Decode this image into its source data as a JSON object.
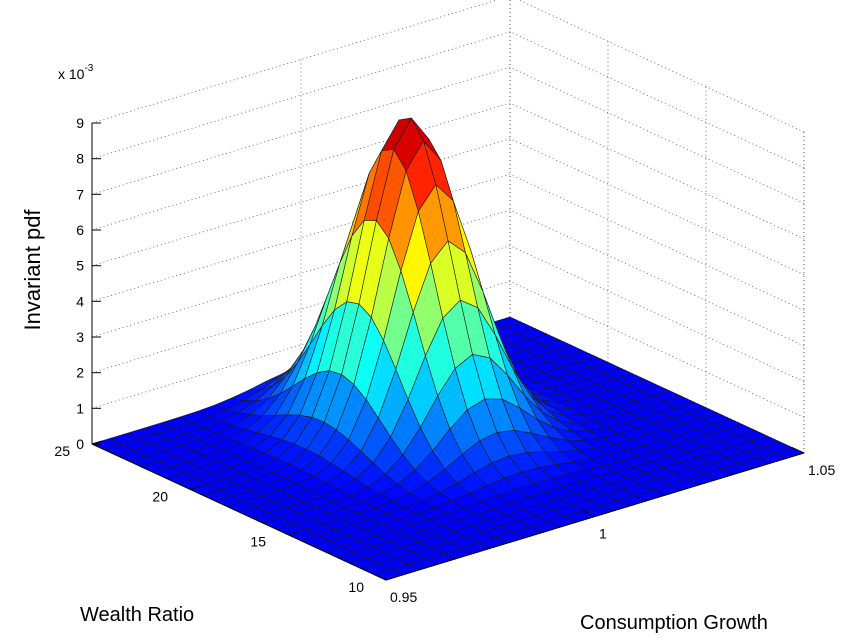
{
  "chart_data": {
    "type": "surface",
    "title": "",
    "zlabel": "Invariant pdf",
    "xlabel": "Consumption Growth",
    "ylabel": "Wealth Ratio",
    "z_multiplier_label": "x 10",
    "z_multiplier_exponent": "-3",
    "xlim": [
      0.95,
      1.05
    ],
    "ylim": [
      10,
      25
    ],
    "zlim": [
      0,
      9
    ],
    "x_ticks": [
      "0.95",
      "1",
      "1.05"
    ],
    "y_ticks": [
      "10",
      "15",
      "20",
      "25"
    ],
    "z_ticks": [
      "0",
      "1",
      "2",
      "3",
      "4",
      "5",
      "6",
      "7",
      "8",
      "9"
    ],
    "z_tick_values": [
      0,
      1,
      2,
      3,
      4,
      5,
      6,
      7,
      8,
      9
    ],
    "grid": true,
    "colormap": "jet",
    "surface": {
      "description_units": "z in units of 1e-3",
      "peak": {
        "x": 1.0,
        "y": 19.5,
        "z": 8.8
      },
      "spread": {
        "x_sd": 0.01,
        "y_sd": 2.2
      },
      "grid_x_count": 25,
      "grid_y_count": 25
    }
  }
}
